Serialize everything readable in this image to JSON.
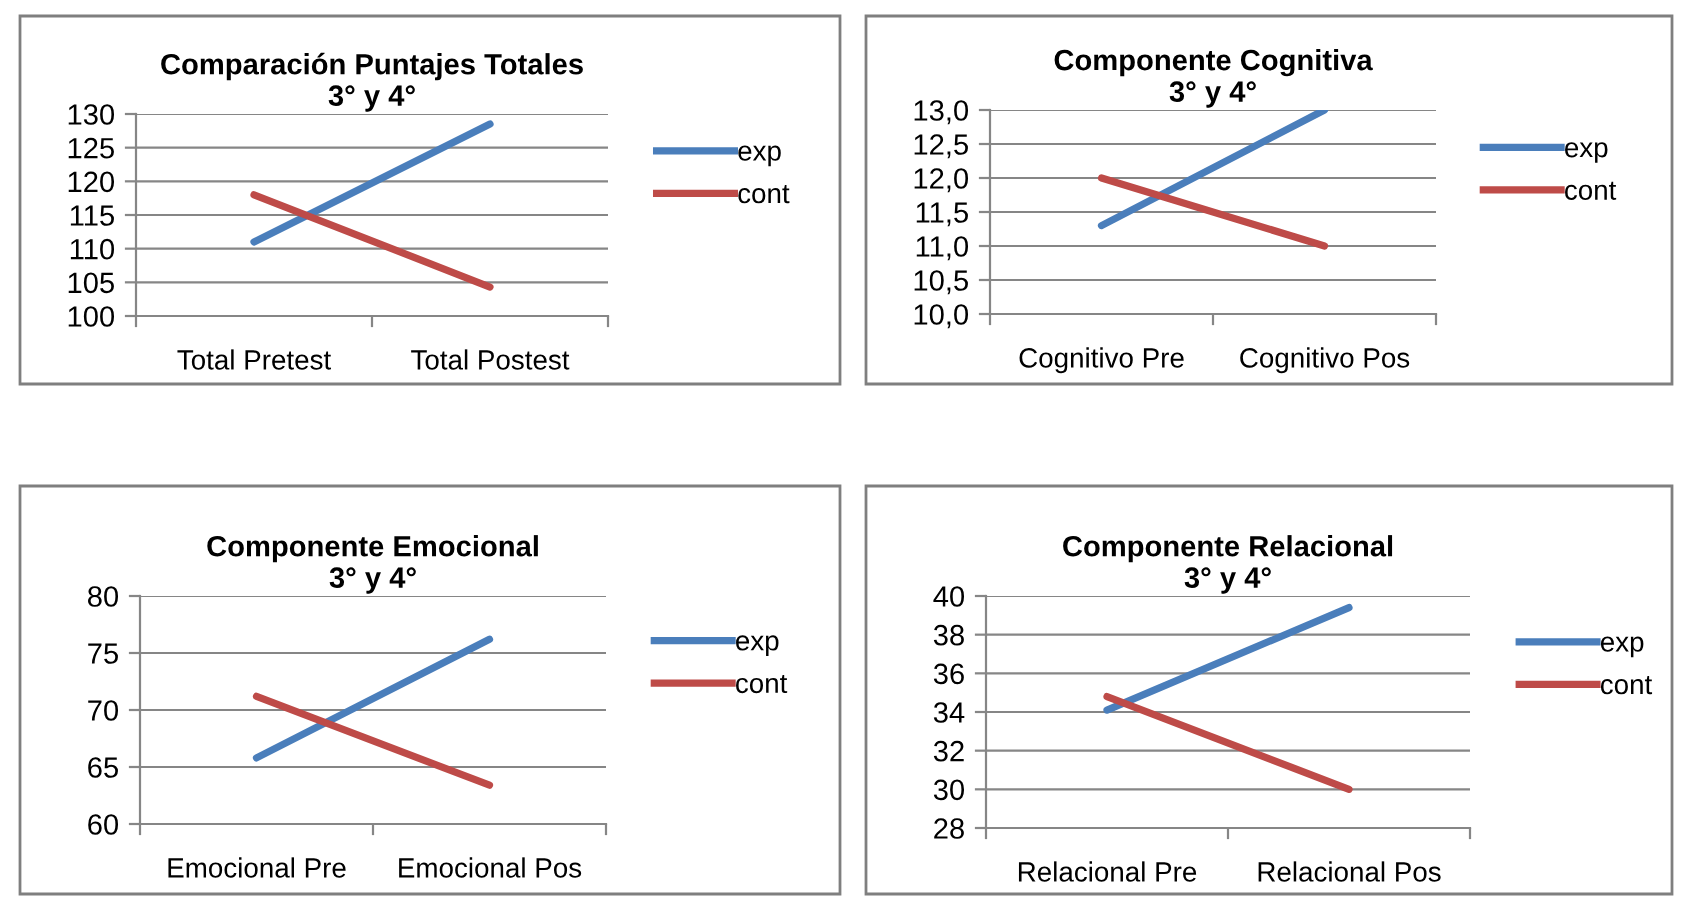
{
  "chart_data": [
    {
      "type": "line",
      "title": "Comparación Puntajes Totales",
      "subtitle": "3° y 4°",
      "categories": [
        "Total Pretest",
        "Total Postest"
      ],
      "series": [
        {
          "name": "exp",
          "color": "#4a7ebb",
          "values": [
            111,
            128.5
          ]
        },
        {
          "name": "cont",
          "color": "#be4b48",
          "values": [
            118,
            104.3
          ]
        }
      ],
      "ylim": [
        100,
        130
      ],
      "yticks": [
        100,
        105,
        110,
        115,
        120,
        125,
        130
      ],
      "grid": "y",
      "legend": "right",
      "marker": "none"
    },
    {
      "type": "line",
      "title": "Componente Cognitiva",
      "subtitle": "3° y 4°",
      "categories": [
        "Cognitivo Pre",
        "Cognitivo Pos"
      ],
      "series": [
        {
          "name": "exp",
          "color": "#4a7ebb",
          "values": [
            11.3,
            13.0
          ]
        },
        {
          "name": "cont",
          "color": "#be4b48",
          "values": [
            12.0,
            11.0
          ]
        }
      ],
      "ylim": [
        10,
        13
      ],
      "yticks": [
        {
          "value": 10,
          "label": "10,0"
        },
        {
          "value": 10.5,
          "label": "10,5"
        },
        {
          "value": 11,
          "label": "11,0"
        },
        {
          "value": 11.5,
          "label": "11,5"
        },
        {
          "value": 12,
          "label": "12,0"
        },
        {
          "value": 12.5,
          "label": "12,5"
        },
        {
          "value": 13,
          "label": "13,0"
        }
      ],
      "grid": "y",
      "legend": "right",
      "marker": "none"
    },
    {
      "type": "line",
      "title": "Componente Emocional",
      "subtitle": "3° y 4°",
      "categories": [
        "Emocional Pre",
        "Emocional Pos"
      ],
      "series": [
        {
          "name": "exp",
          "color": "#4a7ebb",
          "values": [
            65.8,
            76.2
          ]
        },
        {
          "name": "cont",
          "color": "#be4b48",
          "values": [
            71.2,
            63.4
          ]
        }
      ],
      "ylim": [
        60,
        80
      ],
      "yticks": [
        60,
        65,
        70,
        75,
        80
      ],
      "grid": "y",
      "legend": "right",
      "marker": "none"
    },
    {
      "type": "line",
      "title": "Componente Relacional",
      "subtitle": "3° y 4°",
      "categories": [
        "Relacional Pre",
        "Relacional Pos"
      ],
      "series": [
        {
          "name": "exp",
          "color": "#4a7ebb",
          "values": [
            34.1,
            39.4
          ]
        },
        {
          "name": "cont",
          "color": "#be4b48",
          "values": [
            34.8,
            30.0
          ]
        }
      ],
      "ylim": [
        28,
        40
      ],
      "yticks": [
        28,
        30,
        32,
        34,
        36,
        38,
        40
      ],
      "grid": "y",
      "legend": "right",
      "marker": "none"
    }
  ]
}
